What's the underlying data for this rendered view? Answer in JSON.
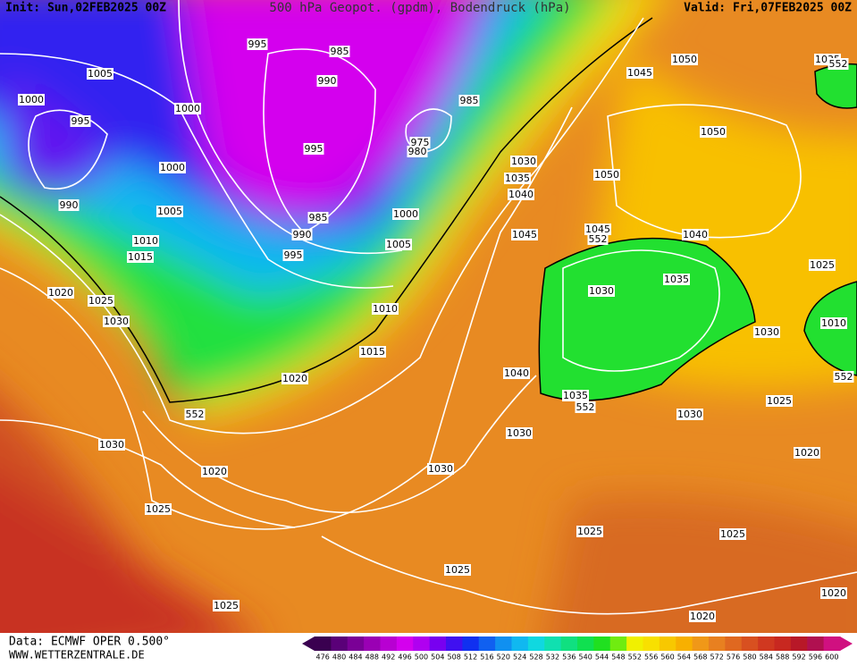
{
  "header": {
    "init": "Init: Sun,02FEB2025 00Z",
    "title": "500 hPa Geopot. (gpdm), Bodendruck (hPa)",
    "valid": "Valid: Fri,07FEB2025 00Z"
  },
  "isobar_labels": [
    "1005",
    "1000",
    "995",
    "1000",
    "995",
    "985",
    "990",
    "985",
    "975",
    "980",
    "995",
    "1000",
    "990",
    "1005",
    "985",
    "990",
    "995",
    "1000",
    "1005",
    "1010",
    "1015",
    "1020",
    "1025",
    "1030",
    "1010",
    "1015",
    "1020",
    "552",
    "1030",
    "1020",
    "1025",
    "1025",
    "1030",
    "1030",
    "1025",
    "1025",
    "1025",
    "1020",
    "1020",
    "1020",
    "1025",
    "1030",
    "1030",
    "1035",
    "552",
    "1040",
    "1030",
    "1035",
    "1040",
    "1025",
    "1010",
    "552",
    "1045",
    "1045",
    "552",
    "1040",
    "1035",
    "1030",
    "1050",
    "1050",
    "1045",
    "1050",
    "1035",
    "552"
  ],
  "footer": {
    "source": "Data: ECMWF OPER 0.500°",
    "site": "WWW.WETTERZENTRALE.DE"
  },
  "colorbar": {
    "labels": [
      "476",
      "480",
      "484",
      "488",
      "492",
      "496",
      "500",
      "504",
      "508",
      "512",
      "516",
      "520",
      "524",
      "528",
      "532",
      "536",
      "540",
      "544",
      "548",
      "552",
      "556",
      "560",
      "564",
      "568",
      "572",
      "576",
      "580",
      "584",
      "588",
      "592",
      "596",
      "600"
    ],
    "colors": [
      "#3a0050",
      "#5a0078",
      "#7a0096",
      "#9a00b4",
      "#b800d2",
      "#d400ee",
      "#b000f0",
      "#7800f0",
      "#4010f0",
      "#1030f0",
      "#1060f0",
      "#1090f0",
      "#10b8f0",
      "#10d8e0",
      "#10e0b0",
      "#10e080",
      "#10e050",
      "#20e020",
      "#70ec10",
      "#f0f000",
      "#f8e000",
      "#f8c800",
      "#f8b000",
      "#f09818",
      "#e88020",
      "#e06820",
      "#d85020",
      "#d03820",
      "#c82820",
      "#b81828",
      "#b01050",
      "#d01080"
    ]
  }
}
